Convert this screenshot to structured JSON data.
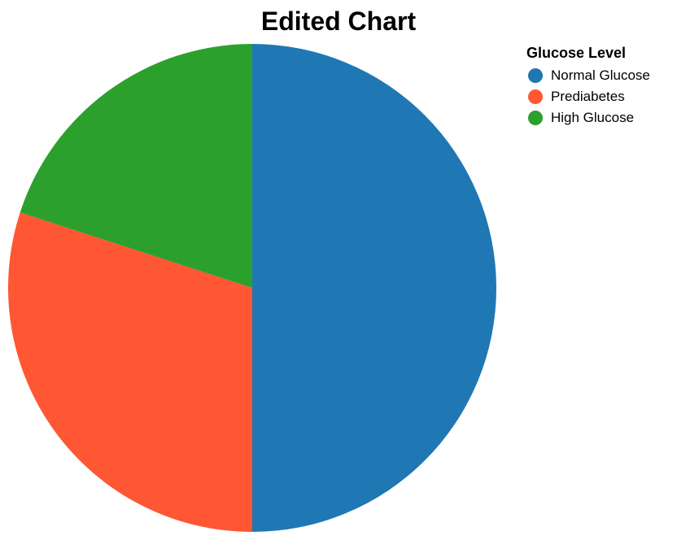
{
  "chart_data": {
    "type": "pie",
    "title": "Edited Chart",
    "legend": {
      "title": "Glucose Level",
      "placement": "top-right"
    },
    "categories": [
      "Normal Glucose",
      "Prediabetes",
      "High Glucose"
    ],
    "values": [
      50,
      30,
      20
    ],
    "colors": [
      "#1f77b4",
      "#ff5733",
      "#2ca02c"
    ]
  }
}
